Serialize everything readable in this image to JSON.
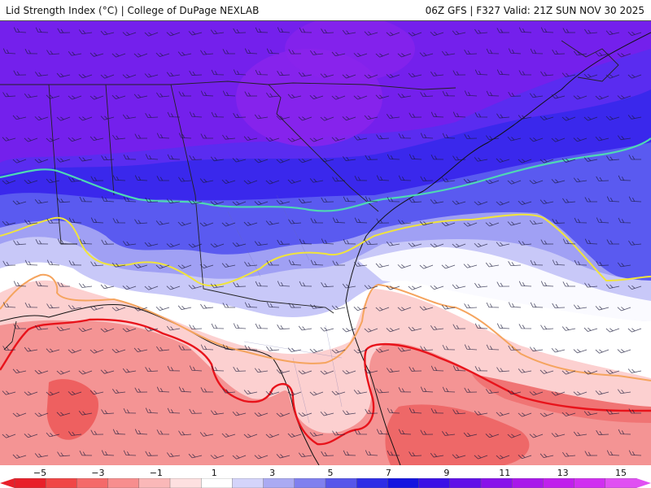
{
  "header": {
    "title": "Lid Strength Index (°C) | College of DuPage NEXLAB",
    "run_info": "06Z GFS | F327 Valid: 21Z SUN NOV 30 2025"
  },
  "legend": {
    "tick_labels": [
      "−5",
      "−3",
      "−1",
      "1",
      "3",
      "5",
      "7",
      "9",
      "11",
      "13",
      "15"
    ],
    "colors": [
      "#e8202a",
      "#f04646",
      "#f46a6a",
      "#f78e8e",
      "#fab8b8",
      "#fde0e0",
      "#ffffff",
      "#d4d4fa",
      "#aaaaf2",
      "#8080ee",
      "#5656ea",
      "#2d2de6",
      "#1414e0",
      "#3a10e6",
      "#6010e8",
      "#8812ea",
      "#a818ea",
      "#c020ec",
      "#d030f0",
      "#e050f2"
    ]
  },
  "map": {
    "contour_colors": {
      "minus3": "#e8131b",
      "minus1": "#f5a45e",
      "plus1": "#f0e43c",
      "plus5": "#4fd8b4"
    }
  }
}
